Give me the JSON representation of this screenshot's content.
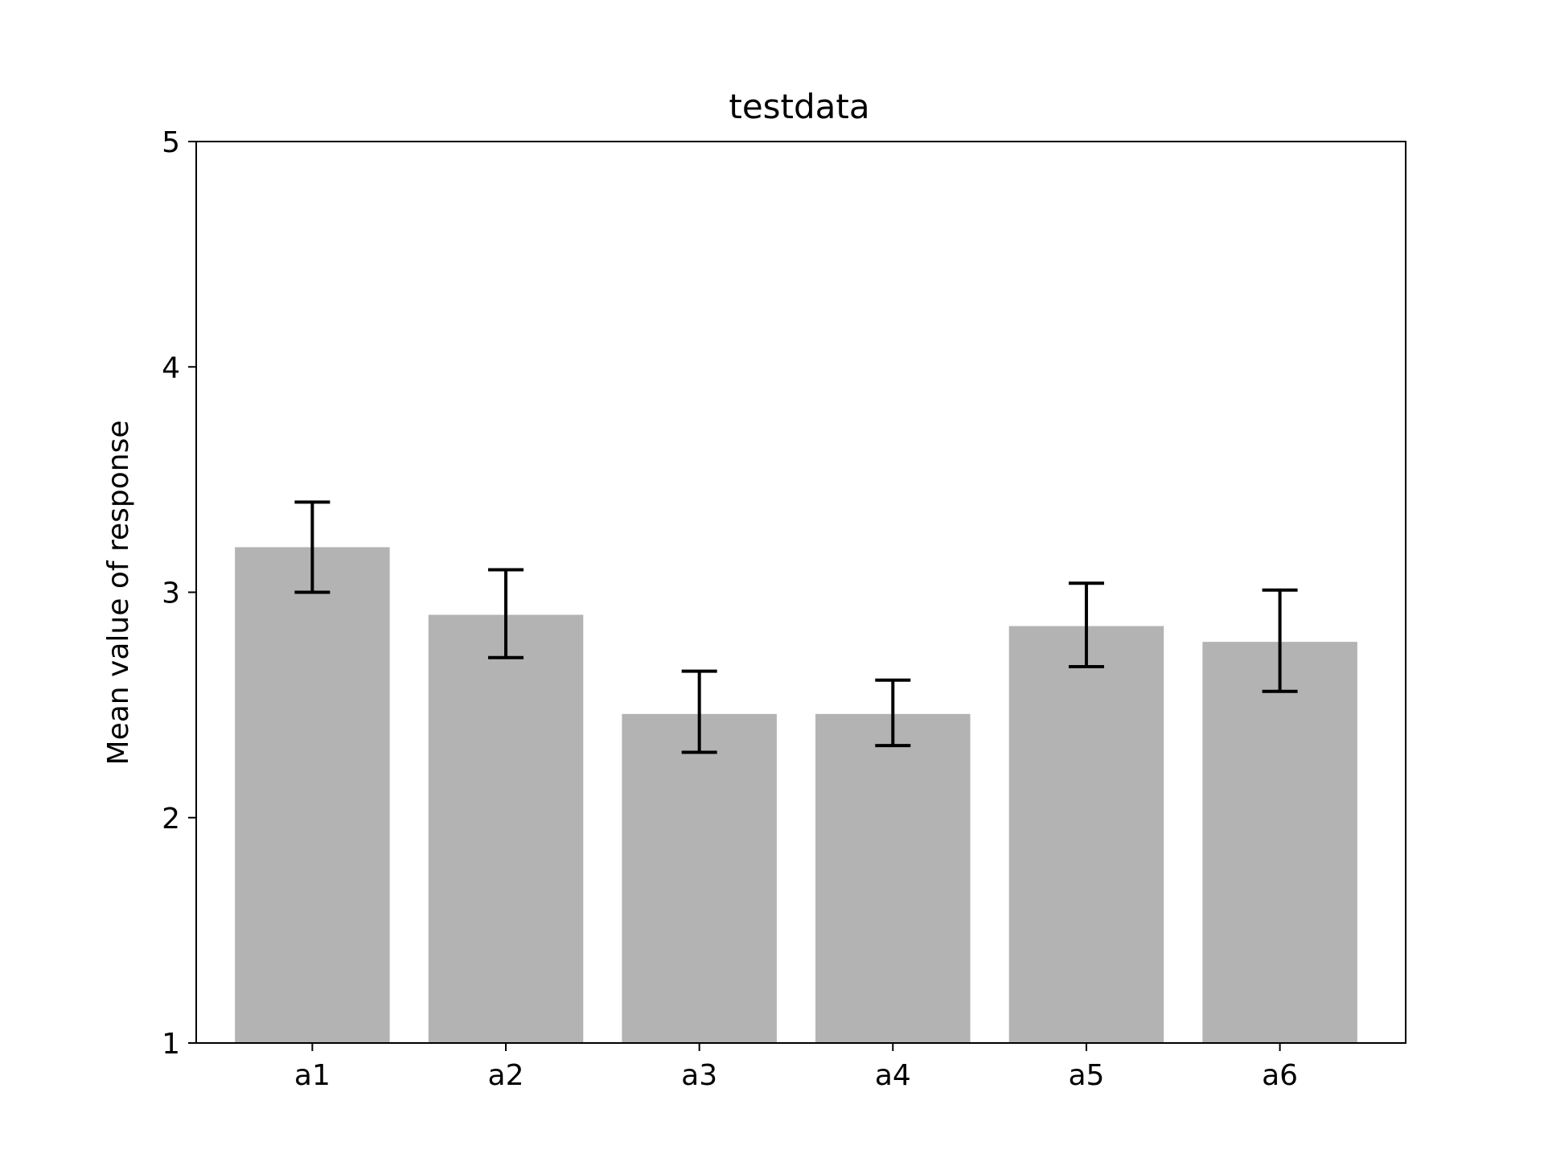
{
  "chart_data": {
    "type": "bar",
    "title": "testdata",
    "xlabel": "",
    "ylabel": "Mean value of response",
    "categories": [
      "a1",
      "a2",
      "a3",
      "a4",
      "a5",
      "a6"
    ],
    "values": [
      3.2,
      2.9,
      2.46,
      2.46,
      2.85,
      2.78
    ],
    "error_bars": [
      {
        "low": 3.0,
        "high": 3.4
      },
      {
        "low": 2.71,
        "high": 3.1
      },
      {
        "low": 2.29,
        "high": 2.65
      },
      {
        "low": 2.32,
        "high": 2.61
      },
      {
        "low": 2.67,
        "high": 3.04
      },
      {
        "low": 2.56,
        "high": 3.01
      }
    ],
    "ylim": [
      1,
      5
    ],
    "yticks": [
      1,
      2,
      3,
      4,
      5
    ],
    "grid": false,
    "legend": "none",
    "bar_color": "#b3b3b3",
    "error_color": "#000000"
  }
}
